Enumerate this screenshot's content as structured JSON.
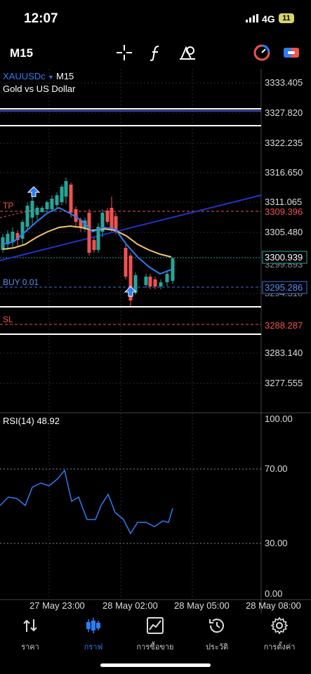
{
  "status_bar": {
    "time": "12:07",
    "network": "4G",
    "battery": "11"
  },
  "toolbar": {
    "timeframe": "M15",
    "icons": [
      "crosshair-icon",
      "function-icon",
      "objects-icon",
      "trade-icon",
      "account-icon"
    ]
  },
  "chart": {
    "symbol": "XAUUSDc",
    "symbol_timeframe": "M15",
    "description": "Gold vs US Dollar",
    "price_labels": [
      "3333.405",
      "3327.820",
      "3322.235",
      "3316.650",
      "3311.065",
      "3305.480",
      "3283.140",
      "3277.555"
    ],
    "price_markers": {
      "tp": "3309.396",
      "current": "3300.939",
      "hidden": "3299.893",
      "hidden2": "3294.310",
      "buy": "3295.286",
      "sl": "3288.287"
    },
    "order_labels": {
      "tp": "TP",
      "buy": "BUY 0.01",
      "sl": "SL"
    },
    "rsi": {
      "label": "RSI(14) 48.92",
      "levels": [
        "100.00",
        "70.00",
        "30.00",
        "0.00"
      ]
    },
    "time_labels": [
      "27 May 23:00",
      "28 May 02:00",
      "28 May 05:00",
      "28 May 08:00"
    ]
  },
  "colors": {
    "up": "#26a69a",
    "down": "#ef5350",
    "ma_fast": "#2e7cf6",
    "ma_slow": "#f5c46b",
    "trend": "#2233cc",
    "accent": "#2e7cf6"
  },
  "bottom_nav": [
    {
      "label": "ราคา",
      "icon": "quotes-icon",
      "active": false
    },
    {
      "label": "กราฟ",
      "icon": "chart-icon",
      "active": true
    },
    {
      "label": "การซื้อขาย",
      "icon": "trade-icon",
      "active": false
    },
    {
      "label": "ประวัติ",
      "icon": "history-icon",
      "active": false
    },
    {
      "label": "การตั้งค่า",
      "icon": "settings-icon",
      "active": false
    }
  ]
}
